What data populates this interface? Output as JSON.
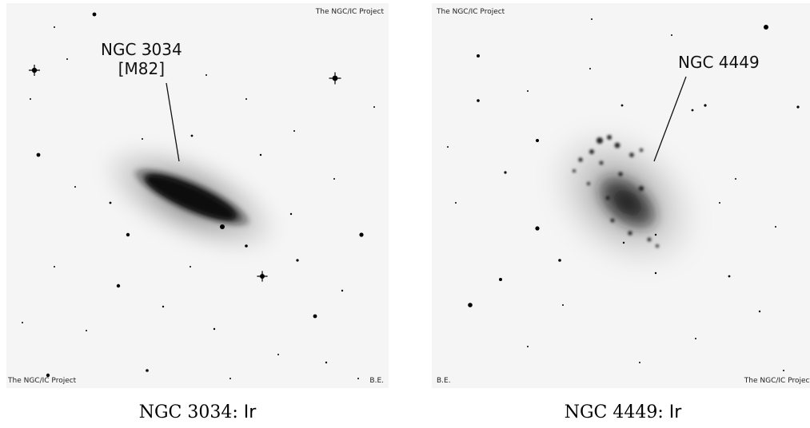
{
  "left": {
    "label_line1": "NGC 3034",
    "label_line2": "[M82]",
    "credit_top": "The NGC/IC Project",
    "credit_bottom_left": "The NGC/IC Project",
    "credit_bottom_right": "B.E.",
    "caption_name": "NGC 3034:",
    "caption_class": "Ir"
  },
  "right": {
    "label": "NGC 4449",
    "credit_top": "The NGC/IC Project",
    "credit_bottom_left": "B.E.",
    "credit_bottom_right": "The NGC/IC Project",
    "caption_name": "NGC 4449:",
    "caption_class": "Ir"
  }
}
